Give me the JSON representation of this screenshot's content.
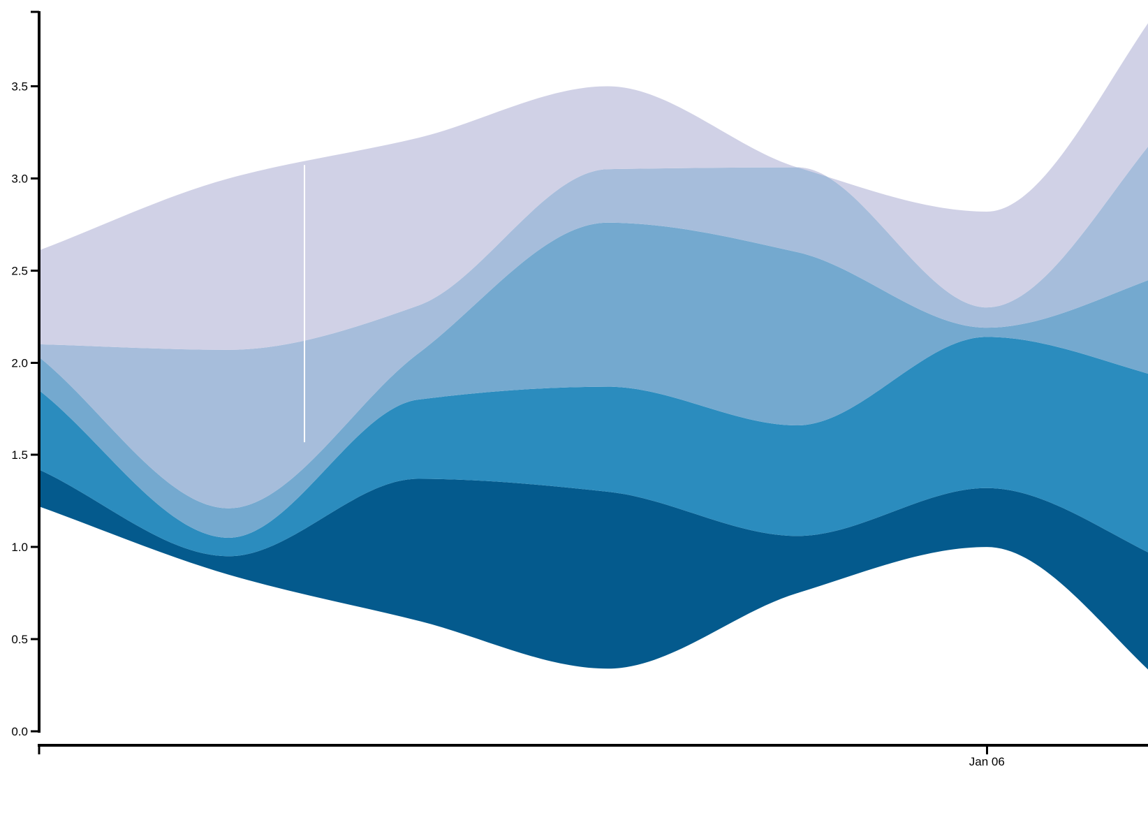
{
  "chart_data": {
    "type": "area",
    "stacked": true,
    "curve": "smooth",
    "x": [
      0,
      1,
      2,
      3,
      4,
      5,
      6
    ],
    "xlim": [
      0,
      5.85
    ],
    "x_ticks": [
      {
        "value": 0,
        "label": ""
      },
      {
        "value": 5,
        "label": "Jan 06"
      }
    ],
    "ylim": [
      0,
      3.9
    ],
    "y_ticks": [
      0.0,
      0.5,
      1.0,
      1.5,
      2.0,
      2.5,
      3.0,
      3.5
    ],
    "y_tick_labels": [
      "0.0",
      "0.5",
      "1.0",
      "1.5",
      "2.0",
      "2.5",
      "3.0",
      "3.5"
    ],
    "baseline": [
      1.22,
      0.85,
      0.6,
      0.34,
      0.75,
      1.0,
      0.2
    ],
    "series": [
      {
        "color": "#045a8d",
        "values": [
          0.2,
          0.1,
          0.77,
          0.96,
          0.31,
          0.32,
          0.7
        ]
      },
      {
        "color": "#2b8cbe",
        "values": [
          0.43,
          0.1,
          0.43,
          0.57,
          0.6,
          0.82,
          1.0
        ]
      },
      {
        "color": "#74a9cf",
        "values": [
          0.18,
          0.16,
          0.25,
          0.89,
          0.94,
          0.05,
          0.6
        ]
      },
      {
        "color": "#a6bddb",
        "values": [
          0.07,
          0.86,
          0.26,
          0.29,
          0.46,
          0.11,
          0.85
        ]
      },
      {
        "color": "#d0d1e6",
        "values": [
          0.51,
          0.93,
          0.91,
          0.45,
          0.0,
          0.52,
          0.7
        ]
      }
    ],
    "hover_x": 1.4,
    "grid": false,
    "legend": "none"
  }
}
